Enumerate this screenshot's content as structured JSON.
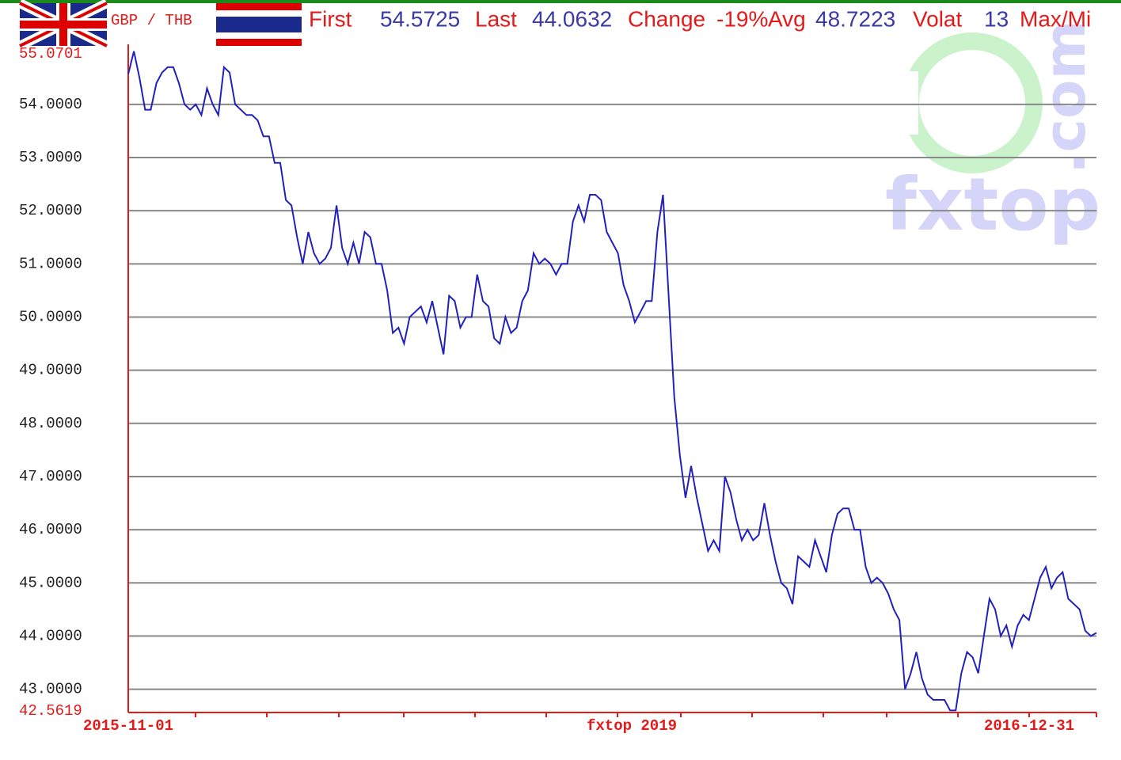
{
  "chart_data": {
    "type": "line",
    "pair": "GBP / THB",
    "stats": [
      {
        "label": "First",
        "value": "54.5725"
      },
      {
        "label": "Last",
        "value": "44.0632"
      },
      {
        "label": "Change",
        "value": "-19%"
      },
      {
        "label": "Avg",
        "value": "48.7223"
      },
      {
        "label": "Volat",
        "value": "13"
      },
      {
        "label": "Max/Mi",
        "value": null
      }
    ],
    "watermark": [
      "fxtop",
      ".com"
    ],
    "xlim": [
      "2015-11-01",
      "2016-12-31"
    ],
    "x_center_label": "fxtop 2019",
    "ylim": [
      42.5619,
      55.0701
    ],
    "yticks": [
      {
        "value": 55.0701,
        "label": "55.0701"
      },
      {
        "value": 54,
        "label": "54.0000"
      },
      {
        "value": 53,
        "label": "53.0000"
      },
      {
        "value": 52,
        "label": "52.0000"
      },
      {
        "value": 51,
        "label": "51.0000"
      },
      {
        "value": 50,
        "label": "50.0000"
      },
      {
        "value": 49,
        "label": "49.0000"
      },
      {
        "value": 48,
        "label": "48.0000"
      },
      {
        "value": 47,
        "label": "47.0000"
      },
      {
        "value": 46,
        "label": "46.0000"
      },
      {
        "value": 45,
        "label": "45.0000"
      },
      {
        "value": 44,
        "label": "44.0000"
      },
      {
        "value": 43,
        "label": "43.0000"
      },
      {
        "value": 42.5619,
        "label": "42.5619"
      }
    ],
    "grid": true,
    "color": "#2222bb",
    "values": [
      54.57,
      55.0,
      54.5,
      53.9,
      53.9,
      54.4,
      54.6,
      54.7,
      54.7,
      54.4,
      54.0,
      53.9,
      54.0,
      53.8,
      54.3,
      54.0,
      53.8,
      54.7,
      54.6,
      54.0,
      53.9,
      53.8,
      53.8,
      53.7,
      53.4,
      53.4,
      52.9,
      52.9,
      52.2,
      52.1,
      51.5,
      51.0,
      51.6,
      51.2,
      51.0,
      51.1,
      51.3,
      52.1,
      51.3,
      51.0,
      51.4,
      51.0,
      51.6,
      51.5,
      51.0,
      51.0,
      50.5,
      49.7,
      49.8,
      49.5,
      50.0,
      50.1,
      50.2,
      49.9,
      50.3,
      49.8,
      49.3,
      50.4,
      50.3,
      49.8,
      50.0,
      50.0,
      50.8,
      50.3,
      50.2,
      49.6,
      49.5,
      50.0,
      49.7,
      49.8,
      50.3,
      50.5,
      51.2,
      51.0,
      51.1,
      51.0,
      50.8,
      51.0,
      51.0,
      51.8,
      52.1,
      51.8,
      52.3,
      52.3,
      52.2,
      51.6,
      51.4,
      51.2,
      50.6,
      50.3,
      49.9,
      50.1,
      50.3,
      50.3,
      51.6,
      52.3,
      50.4,
      48.5,
      47.4,
      46.6,
      47.2,
      46.6,
      46.1,
      45.6,
      45.8,
      45.6,
      47.0,
      46.7,
      46.2,
      45.8,
      46.0,
      45.8,
      45.9,
      46.5,
      45.9,
      45.4,
      45.0,
      44.9,
      44.6,
      45.5,
      45.4,
      45.3,
      45.8,
      45.5,
      45.2,
      45.9,
      46.3,
      46.4,
      46.4,
      46.0,
      46.0,
      45.3,
      45.0,
      45.1,
      45.0,
      44.8,
      44.5,
      44.3,
      43.0,
      43.3,
      43.7,
      43.2,
      42.9,
      42.8,
      42.8,
      42.8,
      42.6,
      42.6,
      43.3,
      43.7,
      43.6,
      43.3,
      44.0,
      44.7,
      44.5,
      44.0,
      44.2,
      43.8,
      44.2,
      44.4,
      44.3,
      44.7,
      45.1,
      45.3,
      44.9,
      45.1,
      45.2,
      44.7,
      44.6,
      44.5,
      44.1,
      44.0,
      44.06
    ]
  }
}
